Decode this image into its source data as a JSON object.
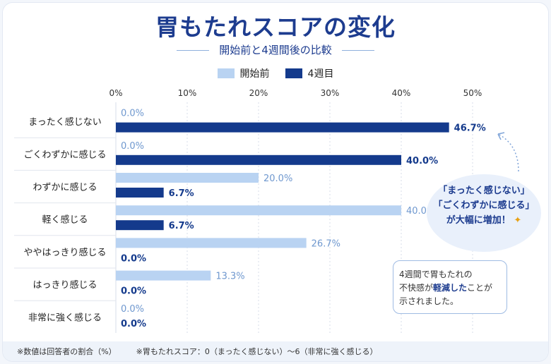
{
  "title": "胃もたれスコアの変化",
  "subtitle": "開始前と4週間後の比較",
  "legend": [
    "開始前",
    "4週目"
  ],
  "colors": {
    "before": "#b9d3f2",
    "after": "#143a8c",
    "title": "#1d3c8f",
    "grid": "#d7dee9",
    "accent": "#e8a012"
  },
  "chart_data": {
    "type": "bar",
    "orientation": "horizontal",
    "categories": [
      "まったく感じない",
      "ごくわずかに感じる",
      "わずかに感じる",
      "軽く感じる",
      "ややはっきり感じる",
      "はっきり感じる",
      "非常に強く感じる"
    ],
    "series": [
      {
        "name": "開始前",
        "values": [
          0.0,
          0.0,
          20.0,
          40.0,
          26.7,
          13.3,
          0.0
        ]
      },
      {
        "name": "4週目",
        "values": [
          46.7,
          40.0,
          6.7,
          6.7,
          0.0,
          0.0,
          0.0
        ]
      }
    ],
    "xlim": [
      0,
      50
    ],
    "xticks": [
      0,
      10,
      20,
      30,
      40,
      50
    ],
    "tick_format": "%",
    "value_format": "0.0%",
    "grid": true,
    "legend_position": "top-center"
  },
  "callout": {
    "lines": [
      "「まったく感じない」",
      "「ごくわずかに感じる」"
    ],
    "tail_prefix": "が",
    "tail_accent": "大幅に増加",
    "tail_suffix": "！"
  },
  "note": {
    "line1": "4週間で胃もたれの",
    "line2_pre": "不快感が",
    "line2_em": "軽減した",
    "line2_post": "ことが",
    "line3": "示されました。"
  },
  "footer": {
    "left": "※数値は回答者の割合（%）",
    "right": "※胃もたれスコア：0（まったく感じない）～6（非常に強く感じる）"
  }
}
